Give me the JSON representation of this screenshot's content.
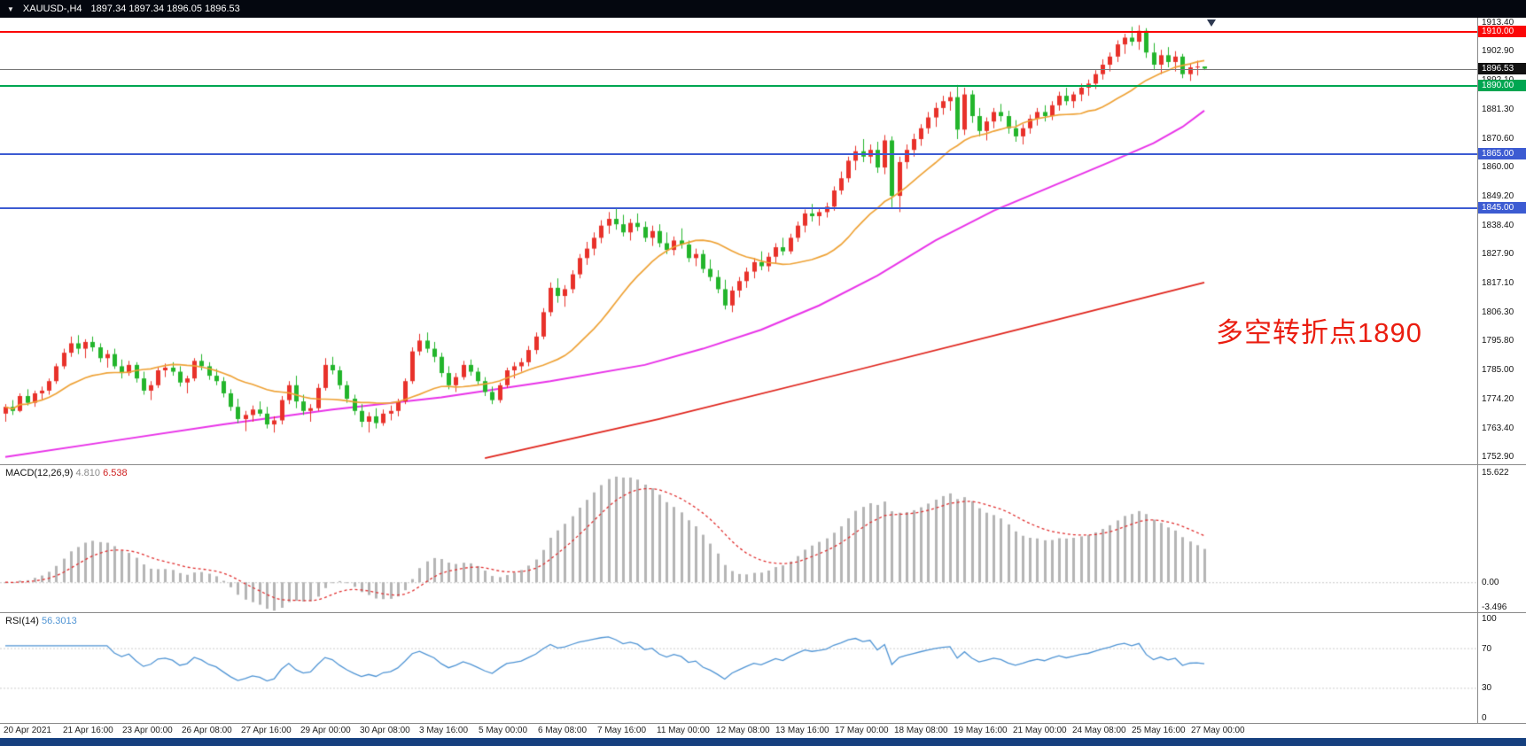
{
  "header": {
    "symbol_timeframe": "XAUUSD-,H4",
    "quotes": "1897.34 1897.34 1896.05 1896.53"
  },
  "annotation": {
    "text": "多空转折点1890",
    "color": "#ea1d10"
  },
  "price_scale": {
    "min": 1752.9,
    "max": 1913.4,
    "labels": [
      "1913.40",
      "1902.90",
      "1892.10",
      "1881.30",
      "1870.60",
      "1860.00",
      "1849.20",
      "1838.40",
      "1827.90",
      "1817.10",
      "1806.30",
      "1795.80",
      "1785.00",
      "1774.20",
      "1763.40",
      "1752.90"
    ]
  },
  "levels": [
    {
      "name": "resistance-1910",
      "label": "1910.00",
      "price": 1910.0,
      "line_color": "#fb0707",
      "badge_color": "#fb0707",
      "thickness": 2
    },
    {
      "name": "bid-price",
      "label": "1896.53",
      "price": 1896.53,
      "line_color": "#777777",
      "badge_color": "#111111",
      "thickness": 1
    },
    {
      "name": "pivot-1890",
      "label": "1890.00",
      "price": 1890.0,
      "line_color": "#00a651",
      "badge_color": "#00a651",
      "thickness": 2
    },
    {
      "name": "support-1865",
      "label": "1865.00",
      "price": 1865.0,
      "line_color": "#3c5bd2",
      "badge_color": "#3c5bd2",
      "thickness": 2
    },
    {
      "name": "support-1845",
      "label": "1845.00",
      "price": 1845.0,
      "line_color": "#3c5bd2",
      "badge_color": "#3c5bd2",
      "thickness": 2
    }
  ],
  "chart_data": {
    "type": "candlestick",
    "symbol": "XAUUSD-",
    "timeframe": "H4",
    "up_color": "#e8312a",
    "down_color": "#23b52b",
    "y_axis": {
      "min": 1752.9,
      "max": 1913.4
    },
    "x_labels": [
      "20 Apr 2021",
      "21 Apr 16:00",
      "23 Apr 00:00",
      "26 Apr 08:00",
      "27 Apr 16:00",
      "29 Apr 00:00",
      "30 Apr 08:00",
      "3 May 16:00",
      "5 May 00:00",
      "6 May 08:00",
      "7 May 16:00",
      "11 May 00:00",
      "12 May 08:00",
      "13 May 16:00",
      "17 May 00:00",
      "18 May 08:00",
      "19 May 16:00",
      "21 May 00:00",
      "24 May 08:00",
      "25 May 16:00",
      "27 May 00:00"
    ],
    "x_label_interval_bars": 8,
    "candles": [
      [
        1769.0,
        1772.5,
        1766.0,
        1771.5
      ],
      [
        1771.5,
        1774.0,
        1768.5,
        1770.0
      ],
      [
        1770.0,
        1776.5,
        1769.5,
        1775.5
      ],
      [
        1775.5,
        1778.0,
        1772.0,
        1773.0
      ],
      [
        1773.0,
        1777.5,
        1771.5,
        1776.5
      ],
      [
        1776.5,
        1779.0,
        1774.0,
        1777.5
      ],
      [
        1777.5,
        1782.0,
        1776.0,
        1781.0
      ],
      [
        1781.0,
        1787.5,
        1780.0,
        1786.5
      ],
      [
        1786.5,
        1793.0,
        1785.5,
        1791.5
      ],
      [
        1791.5,
        1797.5,
        1790.0,
        1795.0
      ],
      [
        1795.0,
        1798.0,
        1791.0,
        1793.0
      ],
      [
        1793.0,
        1796.5,
        1789.5,
        1795.5
      ],
      [
        1795.5,
        1797.5,
        1792.0,
        1793.5
      ],
      [
        1793.5,
        1795.0,
        1788.0,
        1789.5
      ],
      [
        1789.5,
        1792.5,
        1786.0,
        1791.0
      ],
      [
        1791.0,
        1793.0,
        1785.5,
        1786.5
      ],
      [
        1786.5,
        1789.0,
        1782.0,
        1784.0
      ],
      [
        1784.0,
        1788.5,
        1783.0,
        1787.0
      ],
      [
        1787.0,
        1788.0,
        1780.5,
        1782.0
      ],
      [
        1782.0,
        1784.5,
        1776.0,
        1777.5
      ],
      [
        1777.5,
        1781.0,
        1774.0,
        1779.5
      ],
      [
        1779.5,
        1786.0,
        1778.5,
        1785.0
      ],
      [
        1785.0,
        1787.5,
        1782.5,
        1786.0
      ],
      [
        1786.0,
        1788.0,
        1783.0,
        1784.5
      ],
      [
        1784.5,
        1786.5,
        1779.0,
        1780.5
      ],
      [
        1780.5,
        1783.0,
        1776.5,
        1782.0
      ],
      [
        1782.0,
        1789.5,
        1781.0,
        1788.5
      ],
      [
        1788.5,
        1791.0,
        1785.0,
        1786.5
      ],
      [
        1786.5,
        1788.0,
        1781.5,
        1783.0
      ],
      [
        1783.0,
        1785.5,
        1779.5,
        1781.0
      ],
      [
        1781.0,
        1782.5,
        1775.0,
        1776.5
      ],
      [
        1776.5,
        1778.0,
        1770.0,
        1771.5
      ],
      [
        1771.5,
        1774.5,
        1765.5,
        1767.0
      ],
      [
        1767.0,
        1770.0,
        1762.5,
        1768.5
      ],
      [
        1768.5,
        1772.0,
        1766.0,
        1770.5
      ],
      [
        1770.5,
        1773.5,
        1768.0,
        1769.0
      ],
      [
        1769.0,
        1771.5,
        1763.5,
        1765.0
      ],
      [
        1765.0,
        1768.0,
        1762.0,
        1766.5
      ],
      [
        1766.5,
        1775.5,
        1765.0,
        1774.0
      ],
      [
        1774.0,
        1781.0,
        1772.5,
        1779.5
      ],
      [
        1779.5,
        1783.0,
        1771.0,
        1773.5
      ],
      [
        1773.5,
        1776.0,
        1768.5,
        1770.0
      ],
      [
        1770.0,
        1772.5,
        1766.0,
        1771.0
      ],
      [
        1771.0,
        1780.0,
        1770.0,
        1778.5
      ],
      [
        1778.5,
        1789.5,
        1777.5,
        1787.0
      ],
      [
        1787.0,
        1790.0,
        1783.5,
        1785.0
      ],
      [
        1785.0,
        1786.5,
        1778.0,
        1779.5
      ],
      [
        1779.5,
        1781.0,
        1773.0,
        1774.5
      ],
      [
        1774.5,
        1776.0,
        1768.5,
        1770.0
      ],
      [
        1770.0,
        1772.5,
        1764.0,
        1766.0
      ],
      [
        1766.0,
        1769.5,
        1762.0,
        1768.0
      ],
      [
        1768.0,
        1771.0,
        1763.5,
        1765.5
      ],
      [
        1765.5,
        1770.5,
        1764.5,
        1769.0
      ],
      [
        1769.0,
        1772.0,
        1766.5,
        1770.0
      ],
      [
        1770.0,
        1774.5,
        1768.0,
        1773.5
      ],
      [
        1773.5,
        1782.0,
        1772.5,
        1781.0
      ],
      [
        1781.0,
        1793.5,
        1780.0,
        1792.0
      ],
      [
        1792.0,
        1798.5,
        1790.5,
        1796.0
      ],
      [
        1796.0,
        1799.0,
        1791.5,
        1793.0
      ],
      [
        1793.0,
        1795.5,
        1788.0,
        1790.0
      ],
      [
        1790.0,
        1791.5,
        1782.5,
        1784.0
      ],
      [
        1784.0,
        1786.5,
        1778.0,
        1779.5
      ],
      [
        1779.5,
        1784.0,
        1777.0,
        1782.5
      ],
      [
        1782.5,
        1788.5,
        1781.5,
        1787.0
      ],
      [
        1787.0,
        1789.0,
        1783.0,
        1784.5
      ],
      [
        1784.5,
        1786.0,
        1779.5,
        1781.0
      ],
      [
        1781.0,
        1782.5,
        1775.5,
        1777.0
      ],
      [
        1777.0,
        1779.0,
        1772.5,
        1774.0
      ],
      [
        1774.0,
        1780.5,
        1773.0,
        1779.5
      ],
      [
        1779.5,
        1786.0,
        1778.5,
        1785.0
      ],
      [
        1785.0,
        1788.0,
        1782.0,
        1786.5
      ],
      [
        1786.5,
        1789.5,
        1784.5,
        1788.0
      ],
      [
        1788.0,
        1794.0,
        1786.5,
        1792.5
      ],
      [
        1792.5,
        1799.0,
        1791.0,
        1797.5
      ],
      [
        1797.5,
        1808.0,
        1796.5,
        1806.5
      ],
      [
        1806.5,
        1817.5,
        1805.0,
        1815.5
      ],
      [
        1815.5,
        1819.0,
        1810.0,
        1812.5
      ],
      [
        1812.5,
        1816.5,
        1808.5,
        1815.0
      ],
      [
        1815.0,
        1822.0,
        1813.5,
        1820.5
      ],
      [
        1820.5,
        1828.0,
        1819.0,
        1826.5
      ],
      [
        1826.5,
        1832.5,
        1824.0,
        1830.0
      ],
      [
        1830.0,
        1836.0,
        1827.5,
        1834.0
      ],
      [
        1834.0,
        1840.5,
        1832.0,
        1838.5
      ],
      [
        1838.5,
        1843.5,
        1835.5,
        1841.0
      ],
      [
        1841.0,
        1845.0,
        1837.0,
        1839.0
      ],
      [
        1839.0,
        1842.5,
        1834.5,
        1836.0
      ],
      [
        1836.0,
        1841.0,
        1833.0,
        1839.5
      ],
      [
        1839.5,
        1843.0,
        1836.5,
        1838.0
      ],
      [
        1838.0,
        1840.0,
        1832.5,
        1834.0
      ],
      [
        1834.0,
        1838.5,
        1831.0,
        1836.5
      ],
      [
        1836.5,
        1839.0,
        1830.5,
        1832.0
      ],
      [
        1832.0,
        1836.0,
        1828.0,
        1829.5
      ],
      [
        1829.5,
        1834.5,
        1827.5,
        1833.0
      ],
      [
        1833.0,
        1837.5,
        1830.0,
        1831.5
      ],
      [
        1831.5,
        1833.0,
        1825.0,
        1826.5
      ],
      [
        1826.5,
        1830.0,
        1823.5,
        1828.0
      ],
      [
        1828.0,
        1829.5,
        1821.0,
        1822.5
      ],
      [
        1822.5,
        1826.0,
        1818.0,
        1819.5
      ],
      [
        1819.5,
        1822.0,
        1813.5,
        1815.0
      ],
      [
        1815.0,
        1818.5,
        1807.5,
        1809.0
      ],
      [
        1809.0,
        1816.0,
        1806.5,
        1814.5
      ],
      [
        1814.5,
        1819.5,
        1812.0,
        1818.0
      ],
      [
        1818.0,
        1823.0,
        1815.5,
        1821.5
      ],
      [
        1821.5,
        1826.5,
        1819.0,
        1825.0
      ],
      [
        1825.0,
        1829.0,
        1822.0,
        1823.5
      ],
      [
        1823.5,
        1828.5,
        1821.5,
        1827.0
      ],
      [
        1827.0,
        1832.0,
        1824.5,
        1830.5
      ],
      [
        1830.5,
        1834.0,
        1827.5,
        1829.0
      ],
      [
        1829.0,
        1835.5,
        1828.0,
        1834.0
      ],
      [
        1834.0,
        1840.0,
        1832.5,
        1838.5
      ],
      [
        1838.5,
        1844.5,
        1836.0,
        1843.0
      ],
      [
        1843.0,
        1846.5,
        1840.0,
        1842.0
      ],
      [
        1842.0,
        1845.0,
        1838.5,
        1843.5
      ],
      [
        1843.5,
        1847.0,
        1841.5,
        1845.5
      ],
      [
        1845.5,
        1853.0,
        1844.0,
        1851.5
      ],
      [
        1851.5,
        1858.5,
        1850.0,
        1856.0
      ],
      [
        1856.0,
        1864.0,
        1854.5,
        1862.5
      ],
      [
        1862.5,
        1868.0,
        1859.0,
        1866.0
      ],
      [
        1866.0,
        1870.5,
        1862.0,
        1864.0
      ],
      [
        1864.0,
        1868.5,
        1861.5,
        1866.5
      ],
      [
        1866.5,
        1869.5,
        1858.0,
        1860.0
      ],
      [
        1860.0,
        1872.0,
        1857.5,
        1870.0
      ],
      [
        1870.0,
        1871.5,
        1845.0,
        1849.5
      ],
      [
        1849.5,
        1864.0,
        1843.5,
        1862.0
      ],
      [
        1862.0,
        1868.5,
        1859.5,
        1866.5
      ],
      [
        1866.5,
        1872.5,
        1864.0,
        1870.5
      ],
      [
        1870.5,
        1876.0,
        1868.0,
        1874.5
      ],
      [
        1874.5,
        1880.5,
        1872.5,
        1878.5
      ],
      [
        1878.5,
        1884.0,
        1875.0,
        1882.0
      ],
      [
        1882.0,
        1886.5,
        1879.5,
        1884.5
      ],
      [
        1884.5,
        1888.0,
        1881.0,
        1886.0
      ],
      [
        1886.0,
        1890.5,
        1870.5,
        1874.0
      ],
      [
        1874.0,
        1889.5,
        1872.0,
        1887.0
      ],
      [
        1887.0,
        1888.5,
        1876.5,
        1879.0
      ],
      [
        1879.0,
        1882.0,
        1871.5,
        1873.5
      ],
      [
        1873.5,
        1878.5,
        1870.0,
        1877.0
      ],
      [
        1877.0,
        1882.0,
        1874.5,
        1880.5
      ],
      [
        1880.5,
        1883.5,
        1877.0,
        1879.0
      ],
      [
        1879.0,
        1881.0,
        1872.5,
        1874.5
      ],
      [
        1874.5,
        1877.5,
        1869.5,
        1871.5
      ],
      [
        1871.5,
        1876.0,
        1868.5,
        1874.5
      ],
      [
        1874.5,
        1879.5,
        1872.5,
        1878.0
      ],
      [
        1878.0,
        1882.0,
        1875.5,
        1880.5
      ],
      [
        1880.5,
        1883.0,
        1877.0,
        1879.0
      ],
      [
        1879.0,
        1884.5,
        1877.5,
        1883.0
      ],
      [
        1883.0,
        1888.0,
        1881.0,
        1886.5
      ],
      [
        1886.5,
        1889.5,
        1883.0,
        1884.5
      ],
      [
        1884.5,
        1888.0,
        1882.0,
        1887.0
      ],
      [
        1887.0,
        1891.0,
        1884.5,
        1889.5
      ],
      [
        1889.5,
        1892.5,
        1886.5,
        1891.0
      ],
      [
        1891.0,
        1896.0,
        1889.0,
        1894.5
      ],
      [
        1894.5,
        1900.0,
        1892.5,
        1898.0
      ],
      [
        1898.0,
        1902.5,
        1895.5,
        1901.0
      ],
      [
        1901.0,
        1907.0,
        1899.0,
        1905.5
      ],
      [
        1905.5,
        1909.5,
        1902.0,
        1908.0
      ],
      [
        1908.0,
        1912.0,
        1905.0,
        1906.5
      ],
      [
        1906.5,
        1912.6,
        1903.5,
        1910.5
      ],
      [
        1910.5,
        1911.5,
        1900.5,
        1902.5
      ],
      [
        1902.5,
        1906.0,
        1896.0,
        1898.0
      ],
      [
        1898.0,
        1903.5,
        1894.5,
        1901.5
      ],
      [
        1901.5,
        1904.5,
        1897.0,
        1899.0
      ],
      [
        1899.0,
        1903.0,
        1895.5,
        1901.0
      ],
      [
        1901.0,
        1902.0,
        1893.0,
        1894.5
      ],
      [
        1894.5,
        1898.5,
        1892.0,
        1897.0
      ],
      [
        1897.0,
        1899.5,
        1894.0,
        1897.3
      ],
      [
        1897.34,
        1897.34,
        1896.05,
        1896.53
      ]
    ],
    "moving_averages": [
      {
        "name": "ma-fast-orange",
        "color": "#eea236",
        "type": "sma_computed",
        "period": 18,
        "width": 1.7
      },
      {
        "name": "ma-mid-magenta",
        "color": "#e832e8",
        "type": "anchored",
        "width": 2,
        "points": [
          [
            0,
            1753
          ],
          [
            15,
            1759
          ],
          [
            30,
            1765
          ],
          [
            45,
            1770.5
          ],
          [
            60,
            1775
          ],
          [
            75,
            1781
          ],
          [
            88,
            1787
          ],
          [
            96,
            1793
          ],
          [
            104,
            1800
          ],
          [
            112,
            1809
          ],
          [
            120,
            1820
          ],
          [
            128,
            1833
          ],
          [
            136,
            1844
          ],
          [
            144,
            1853
          ],
          [
            152,
            1862
          ],
          [
            158,
            1869
          ],
          [
            162,
            1875
          ],
          [
            165,
            1881
          ]
        ]
      },
      {
        "name": "ma-slow-red",
        "color": "#df241c",
        "type": "anchored",
        "width": 1.8,
        "points": [
          [
            66,
            1752.5
          ],
          [
            90,
            1767
          ],
          [
            117,
            1785
          ],
          [
            140,
            1800.5
          ],
          [
            165,
            1817.5
          ]
        ]
      }
    ]
  },
  "macd": {
    "label": "MACD(12,26,9)",
    "macd_value": "4.810",
    "signal_value": "6.538",
    "scale_max": 15.622,
    "scale_min": -3.496,
    "scale_labels": [
      "15.622",
      "0.00",
      "-3.496"
    ],
    "histogram_color": "#b5b5b5",
    "signal_color": "#e03030",
    "params": {
      "fast": 12,
      "slow": 26,
      "signal": 9
    }
  },
  "rsi": {
    "label": "RSI(14)",
    "value": "56.3013",
    "period": 14,
    "scale_labels": [
      "100",
      "70",
      "30",
      "0"
    ],
    "levels": [
      70,
      30
    ],
    "line_color": "#4f94d4"
  }
}
